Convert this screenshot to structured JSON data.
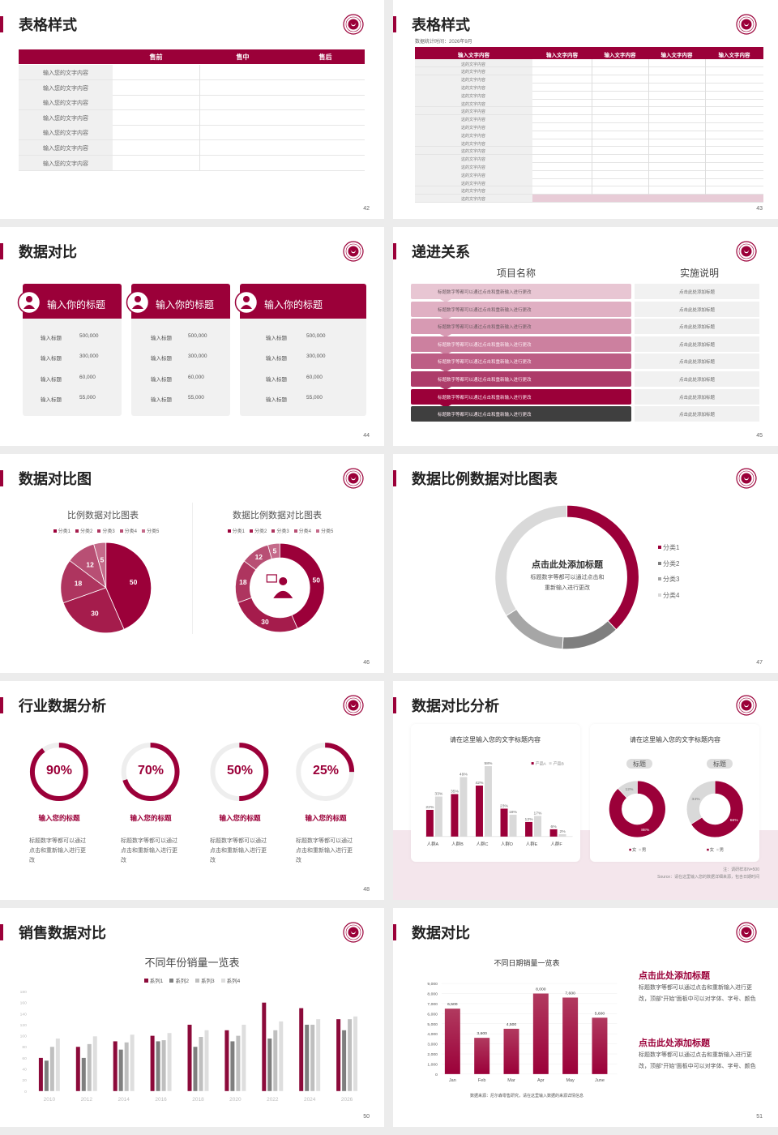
{
  "colors": {
    "primary": "#9b0039",
    "gray_dark": "#7f7f7f",
    "gray_mid": "#a6a6a6",
    "gray_light": "#d9d9d9",
    "pink_bg": "#f4e6ec"
  },
  "icons": {
    "logo": "university-seal-logo",
    "card_icons": [
      "phone-user-icon",
      "user-add-icon",
      "users-group-icon"
    ],
    "center_icon": "person-speech-icon"
  },
  "s42": {
    "page": "42",
    "title": "表格样式",
    "headers": [
      "",
      "售前",
      "售中",
      "售后"
    ],
    "rows": [
      "输入您的文字内容",
      "输入您的文字内容",
      "输入您的文字内容",
      "输入您的文字内容",
      "输入您的文字内容",
      "输入您的文字内容",
      "输入您的文字内容"
    ]
  },
  "s43": {
    "page": "43",
    "title": "表格样式",
    "subtitle": "数据统计时间：2026年9月",
    "headers": [
      "输入文字内容",
      "输入文字内容",
      "输入文字内容",
      "输入文字内容",
      "输入文字内容"
    ],
    "rows": [
      "这的文字内容",
      "这的文字内容",
      "这的文字内容",
      "这的文字内容",
      "这的文字内容",
      "这的文字内容",
      "这的文字内容",
      "这的文字内容",
      "这的文字内容",
      "这的文字内容",
      "这的文字内容",
      "这的文字内容",
      "这的文字内容",
      "这的文字内容",
      "这的文字内容",
      "这的文字内容",
      "这的文字内容",
      "这的文字内容"
    ]
  },
  "s44": {
    "page": "44",
    "title": "数据对比",
    "cards": [
      {
        "title": "输入你的标题",
        "rows": [
          {
            "label": "输入标题",
            "value": "500,000"
          },
          {
            "label": "输入标题",
            "value": "300,000"
          },
          {
            "label": "输入标题",
            "value": "60,000"
          },
          {
            "label": "输入标题",
            "value": "55,000"
          }
        ]
      },
      {
        "title": "输入你的标题",
        "rows": [
          {
            "label": "输入标题",
            "value": "500,000"
          },
          {
            "label": "输入标题",
            "value": "300,000"
          },
          {
            "label": "输入标题",
            "value": "60,000"
          },
          {
            "label": "输入标题",
            "value": "55,000"
          }
        ]
      },
      {
        "title": "输入你的标题",
        "rows": [
          {
            "label": "输入标题",
            "value": "500,000"
          },
          {
            "label": "输入标题",
            "value": "300,000"
          },
          {
            "label": "输入标题",
            "value": "60,000"
          },
          {
            "label": "输入标题",
            "value": "55,000"
          }
        ]
      }
    ]
  },
  "s45": {
    "page": "45",
    "title": "递进关系",
    "col1": "项目名称",
    "col2": "实施说明",
    "rows": [
      {
        "text": "标题数字等都可以通过点击和重新输入进行更改",
        "note": "点击此处添加标题"
      },
      {
        "text": "标题数字等都可以通过点击和重新输入进行更改",
        "note": "点击此处添加标题"
      },
      {
        "text": "标题数字等都可以通过点击和重新输入进行更改",
        "note": "点击此处添加标题"
      },
      {
        "text": "标题数字等都可以通过点击和重新输入进行更改",
        "note": "点击此处添加标题"
      },
      {
        "text": "标题数字等都可以通过点击和重新输入进行更改",
        "note": "点击此处添加标题"
      },
      {
        "text": "标题数字等都可以通过点击和重新输入进行更改",
        "note": "点击此处添加标题"
      },
      {
        "text": "标题数字等都可以通过点击和重新输入进行更改",
        "note": "点击此处添加标题"
      },
      {
        "text": "标题数字等都可以通过点击和重新输入进行更改",
        "note": "点击此处添加标题"
      }
    ],
    "row_colors": [
      "#e8c6d3",
      "#e0b0c3",
      "#d79ab3",
      "#cc809f",
      "#bd5e85",
      "#ad3c6a",
      "#9b0039",
      "#3f3f3f"
    ]
  },
  "s46": {
    "page": "46",
    "title": "数据对比图"
  },
  "s47": {
    "page": "47",
    "title": "数据比例数据对比图表",
    "center_title": "点击此处添加标题",
    "center_desc": [
      "标题数字等都可以通过点击和",
      "重新输入进行更改"
    ]
  },
  "s48": {
    "page": "48",
    "title": "行业数据分析",
    "items": [
      {
        "value": 90,
        "label": "90%",
        "title": "输入您的标题",
        "desc": "标题数字等都可以通过点击和重新输入进行更改"
      },
      {
        "value": 70,
        "label": "70%",
        "title": "输入您的标题",
        "desc": "标题数字等都可以通过点击和重新输入进行更改"
      },
      {
        "value": 50,
        "label": "50%",
        "title": "输入您的标题",
        "desc": "标题数字等都可以通过点击和重新输入进行更改"
      },
      {
        "value": 25,
        "label": "25%",
        "title": "输入您的标题",
        "desc": "标题数字等都可以通过点击和重新输入进行更改"
      }
    ]
  },
  "s49": {
    "page": "49",
    "title": "数据对比分析",
    "note": "注：调研样本N=500",
    "source": "Source：请在这里输入您的数据详细来源，包含日期时间"
  },
  "s50": {
    "page": "50",
    "title": "销售数据对比"
  },
  "s51": {
    "page": "51",
    "title": "数据对比",
    "source": "数据来源：尼尔森零售研究，请在这里输入数据的来源详情信息",
    "blocks": [
      {
        "heading": "点击此处添加标题",
        "desc": "标题数字等都可以通过点击和重新输入进行更改，顶部“开始”面板中可以对字体、字号、颜色"
      },
      {
        "heading": "点击此处添加标题",
        "desc": "标题数字等都可以通过点击和重新输入进行更改，顶部“开始”面板中可以对字体、字号、颜色"
      }
    ]
  },
  "chart_data": [
    {
      "id": "s46_pie",
      "type": "pie",
      "title": "比例数据对比图表",
      "categories": [
        "分类1",
        "分类2",
        "分类3",
        "分类4",
        "分类5"
      ],
      "values": [
        50,
        30,
        18,
        12,
        5
      ],
      "labels": [
        "50",
        "30",
        "18",
        "12",
        "5"
      ],
      "legend": "top",
      "colors": [
        "#9b0039",
        "#a51c4c",
        "#ae355f",
        "#b84f74",
        "#c56a8a"
      ]
    },
    {
      "id": "s46_donut",
      "type": "pie",
      "title": "数据比例数据对比图表",
      "categories": [
        "分类1",
        "分类2",
        "分类3",
        "分类4",
        "分类5"
      ],
      "values": [
        50,
        30,
        18,
        12,
        5
      ],
      "labels": [
        "50",
        "30",
        "18",
        "12",
        "5"
      ],
      "legend": "top",
      "colors": [
        "#9b0039",
        "#a51c4c",
        "#ae355f",
        "#b84f74",
        "#c56a8a"
      ]
    },
    {
      "id": "s47_ring",
      "type": "pie",
      "categories": [
        "分类1",
        "分类2",
        "分类3",
        "分类4"
      ],
      "values": [
        38,
        13,
        15,
        34
      ],
      "legend": "right",
      "colors": [
        "#9b0039",
        "#7f7f7f",
        "#a6a6a6",
        "#d9d9d9"
      ]
    },
    {
      "id": "s49_bar",
      "type": "bar",
      "title": "请在这里输入您的文字标题内容",
      "categories": [
        "人群A",
        "人群B",
        "人群C",
        "人群D",
        "人群E",
        "人群F"
      ],
      "series": [
        {
          "name": "产品A",
          "values": [
            22,
            35,
            42,
            23,
            12,
            6
          ],
          "labels": [
            "22%",
            "35%",
            "42%",
            "23%",
            "12%",
            "6%"
          ]
        },
        {
          "name": "产品B",
          "values": [
            33,
            49,
            58,
            18,
            17,
            2
          ],
          "labels": [
            "33%",
            "49%",
            "58%",
            "18%",
            "17%",
            "2%"
          ]
        }
      ],
      "legend": "top-right"
    },
    {
      "id": "s49_donuts",
      "type": "pie",
      "title": "请在这里输入您的文字标题内容",
      "charts": [
        {
          "title": "标题",
          "categories": [
            "女",
            "男"
          ],
          "values": [
            88,
            12
          ],
          "labels": [
            "88%",
            "12%"
          ]
        },
        {
          "title": "标题",
          "categories": [
            "女",
            "男"
          ],
          "values": [
            66,
            34
          ],
          "labels": [
            "66%",
            "34%"
          ]
        }
      ],
      "legend": "bottom"
    },
    {
      "id": "s50_bar",
      "type": "bar",
      "title": "不同年份销量一览表",
      "categories": [
        "2010",
        "2012",
        "2014",
        "2016",
        "2018",
        "2020",
        "2022",
        "2024",
        "2026"
      ],
      "series": [
        {
          "name": "系列1",
          "values": [
            60,
            80,
            90,
            100,
            120,
            110,
            160,
            150,
            130
          ]
        },
        {
          "name": "系列2",
          "values": [
            55,
            60,
            75,
            90,
            80,
            90,
            95,
            120,
            110
          ]
        },
        {
          "name": "系列3",
          "values": [
            80,
            85,
            88,
            92,
            98,
            100,
            110,
            120,
            130
          ]
        },
        {
          "name": "系列4",
          "values": [
            95,
            99,
            102,
            105,
            110,
            120,
            126,
            130,
            135
          ]
        }
      ],
      "ylim": [
        0,
        180
      ],
      "yticks": [
        "0",
        "20",
        "40",
        "60",
        "80",
        "100",
        "120",
        "140",
        "160",
        "180"
      ],
      "legend": "top",
      "grid": false,
      "colors": [
        "#8c0a3a",
        "#7f7f7f",
        "#bfbfbf",
        "#dedede"
      ]
    },
    {
      "id": "s51_bar",
      "type": "bar",
      "title": "不同日期销量一览表",
      "categories": [
        "Jan",
        "Feb",
        "Mar",
        "Apr",
        "May",
        "June"
      ],
      "values": [
        6500,
        3600,
        4500,
        8000,
        7600,
        5600
      ],
      "labels": [
        "6,500",
        "3,600",
        "4,500",
        "8,000",
        "7,600",
        "5,600"
      ],
      "ylim": [
        0,
        9000
      ],
      "yticks": [
        "0",
        "1,000",
        "2,000",
        "3,000",
        "4,000",
        "5,000",
        "6,000",
        "7,000",
        "8,000",
        "9,000"
      ],
      "grid": true
    }
  ]
}
